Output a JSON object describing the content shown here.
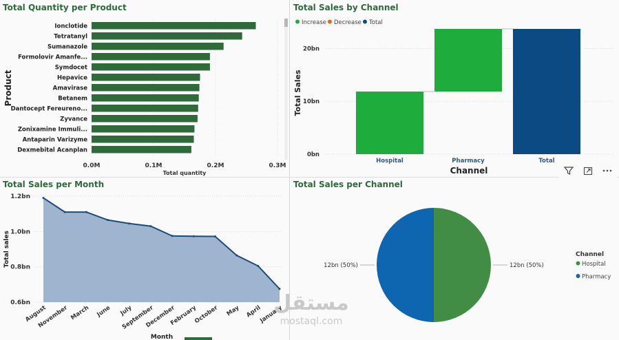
{
  "colors": {
    "bar_green": "#2f6a3b",
    "increase": "#1eac3c",
    "decrease": "#e06a17",
    "total": "#0c4a84",
    "area_fill": "#9fb5cf",
    "area_line": "#1c4a7a",
    "pie_hospital": "#428d46",
    "pie_pharmacy": "#0e66b0",
    "title_green": "#2e6b3a"
  },
  "quantity_panel": {
    "title": "Total Quantity per Product",
    "chart_data": {
      "type": "bar",
      "orientation": "horizontal",
      "title": "Total Quantity per Product",
      "xlabel": "Total quantity",
      "ylabel": "Product",
      "categories": [
        "Ionclotide",
        "Tetratanyl",
        "Sumanazole",
        "Formolovir Amanfe...",
        "Symdocet",
        "Hepavice",
        "Amavirase",
        "Betanem",
        "Dantocept Fereureno...",
        "Zyvance",
        "Zonixamine Immuli...",
        "Antaparin Varizyme",
        "Dexmebital Acanplan"
      ],
      "values": [
        265000,
        243000,
        213000,
        191000,
        191000,
        175000,
        174000,
        173000,
        172000,
        171000,
        166000,
        165000,
        161000
      ],
      "xticks": [
        "0.0M",
        "0.1M",
        "0.2M",
        "0.3M"
      ],
      "xlim": [
        0,
        300000
      ],
      "grid": true
    }
  },
  "channel_panel": {
    "title": "Total Sales by Channel",
    "chart_data": {
      "type": "bar",
      "subtype": "waterfall",
      "title": "Total Sales by Channel",
      "xlabel": "Channel",
      "ylabel": "Total Sales",
      "legend": [
        "Increase",
        "Decrease",
        "Total"
      ],
      "legend_position": "top-left",
      "categories": [
        "Hospital",
        "Pharmacy",
        "Total"
      ],
      "steps": [
        {
          "category": "Hospital",
          "kind": "Increase",
          "start": 0,
          "end": 11.85
        },
        {
          "category": "Pharmacy",
          "kind": "Increase",
          "start": 11.85,
          "end": 23.7
        },
        {
          "category": "Total",
          "kind": "Total",
          "start": 0,
          "end": 23.7
        }
      ],
      "yticks": [
        "0bn",
        "10bn",
        "20bn"
      ],
      "ylim": [
        0,
        25
      ]
    }
  },
  "month_panel": {
    "title": "Total Sales per Month",
    "chart_data": {
      "type": "area",
      "title": "Total Sales per Month",
      "xlabel": "Month",
      "ylabel": "Total sales",
      "categories": [
        "August",
        "November",
        "March",
        "June",
        "July",
        "September",
        "December",
        "February",
        "October",
        "May",
        "April",
        "January"
      ],
      "values": [
        1.19,
        1.11,
        1.11,
        1.065,
        1.045,
        1.03,
        0.975,
        0.973,
        0.972,
        0.865,
        0.805,
        0.675
      ],
      "yticks": [
        "0.6bn",
        "0.8bn",
        "1.0bn",
        "1.2bn"
      ],
      "ylim": [
        0.6,
        1.2
      ],
      "grid": true
    }
  },
  "pie_panel": {
    "title": "Total Sales per Channel",
    "chart_data": {
      "type": "pie",
      "title": "Total Sales per Channel",
      "legend_title": "Channel",
      "legend_position": "right",
      "slices": [
        {
          "name": "Hospital",
          "value": 12,
          "label": "12bn (50%)"
        },
        {
          "name": "Pharmacy",
          "value": 12,
          "label": "12bn (50%)"
        }
      ]
    }
  },
  "watermark": {
    "logo": "مستقل",
    "url": "mostaql.com"
  },
  "actions": {
    "filter_icon": "filter-icon",
    "focus_icon": "focus-mode-icon",
    "more_icon": "more-options-icon"
  }
}
